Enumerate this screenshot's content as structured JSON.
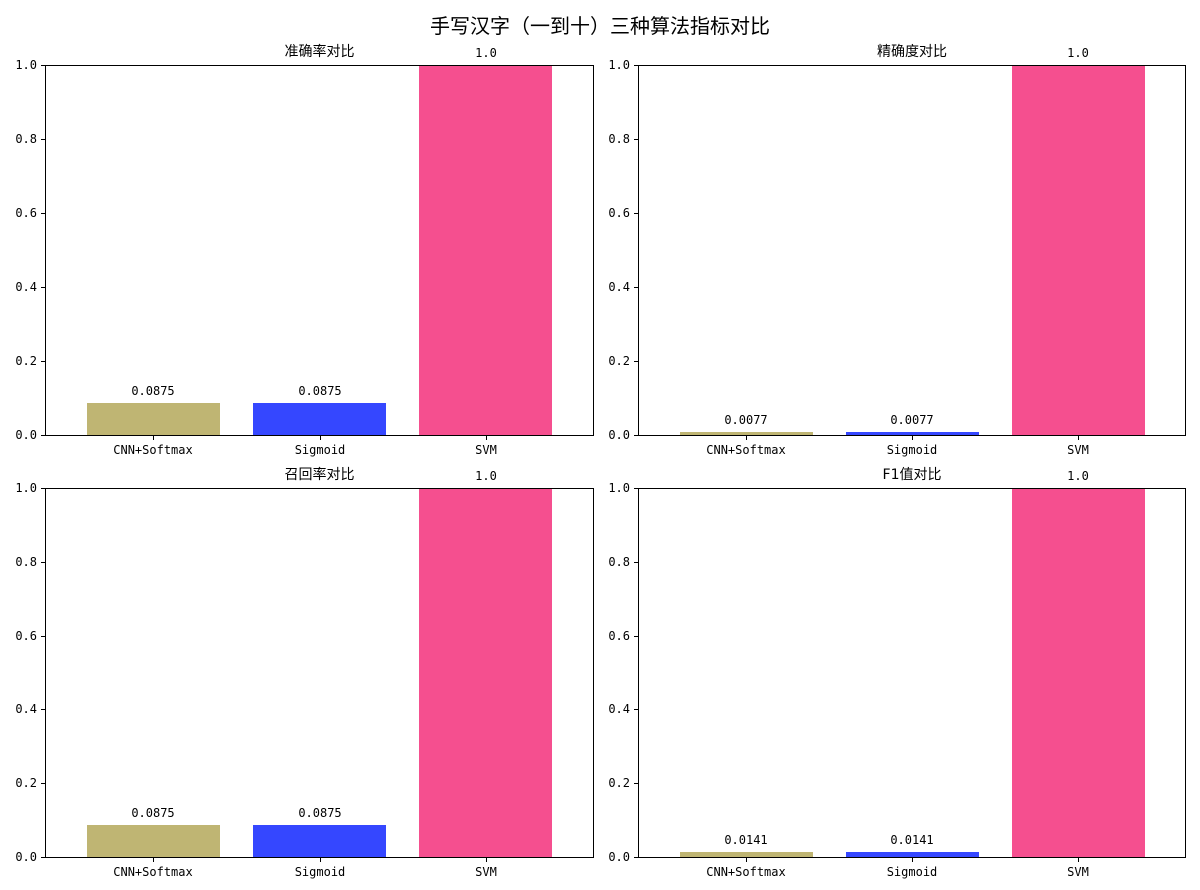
{
  "chart_data": {
    "suptitle": "手写汉字（一到十）三种算法指标对比",
    "layout": "2x2 subplots",
    "subplots": [
      {
        "type": "bar",
        "title": "准确率对比",
        "categories": [
          "CNN+Softmax",
          "Sigmoid",
          "SVM"
        ],
        "values": [
          0.0875,
          0.0875,
          1.0
        ],
        "value_labels": [
          "0.0875",
          "0.0875",
          "1.0"
        ],
        "colors": [
          "#bfb573",
          "#3547ff",
          "#f54f8f"
        ],
        "ylim": [
          0,
          1.0
        ],
        "yticks": [
          "0.0",
          "0.2",
          "0.4",
          "0.6",
          "0.8",
          "1.0"
        ],
        "grid": false
      },
      {
        "type": "bar",
        "title": "精确度对比",
        "categories": [
          "CNN+Softmax",
          "Sigmoid",
          "SVM"
        ],
        "values": [
          0.0077,
          0.0077,
          1.0
        ],
        "value_labels": [
          "0.0077",
          "0.0077",
          "1.0"
        ],
        "colors": [
          "#bfb573",
          "#3547ff",
          "#f54f8f"
        ],
        "ylim": [
          0,
          1.0
        ],
        "yticks": [
          "0.0",
          "0.2",
          "0.4",
          "0.6",
          "0.8",
          "1.0"
        ],
        "grid": false
      },
      {
        "type": "bar",
        "title": "召回率对比",
        "categories": [
          "CNN+Softmax",
          "Sigmoid",
          "SVM"
        ],
        "values": [
          0.0875,
          0.0875,
          1.0
        ],
        "value_labels": [
          "0.0875",
          "0.0875",
          "1.0"
        ],
        "colors": [
          "#bfb573",
          "#3547ff",
          "#f54f8f"
        ],
        "ylim": [
          0,
          1.0
        ],
        "yticks": [
          "0.0",
          "0.2",
          "0.4",
          "0.6",
          "0.8",
          "1.0"
        ],
        "grid": false
      },
      {
        "type": "bar",
        "title": "F1值对比",
        "categories": [
          "CNN+Softmax",
          "Sigmoid",
          "SVM"
        ],
        "values": [
          0.0141,
          0.0141,
          1.0
        ],
        "value_labels": [
          "0.0141",
          "0.0141",
          "1.0"
        ],
        "colors": [
          "#bfb573",
          "#3547ff",
          "#f54f8f"
        ],
        "ylim": [
          0,
          1.0
        ],
        "yticks": [
          "0.0",
          "0.2",
          "0.4",
          "0.6",
          "0.8",
          "1.0"
        ],
        "grid": false
      }
    ]
  }
}
